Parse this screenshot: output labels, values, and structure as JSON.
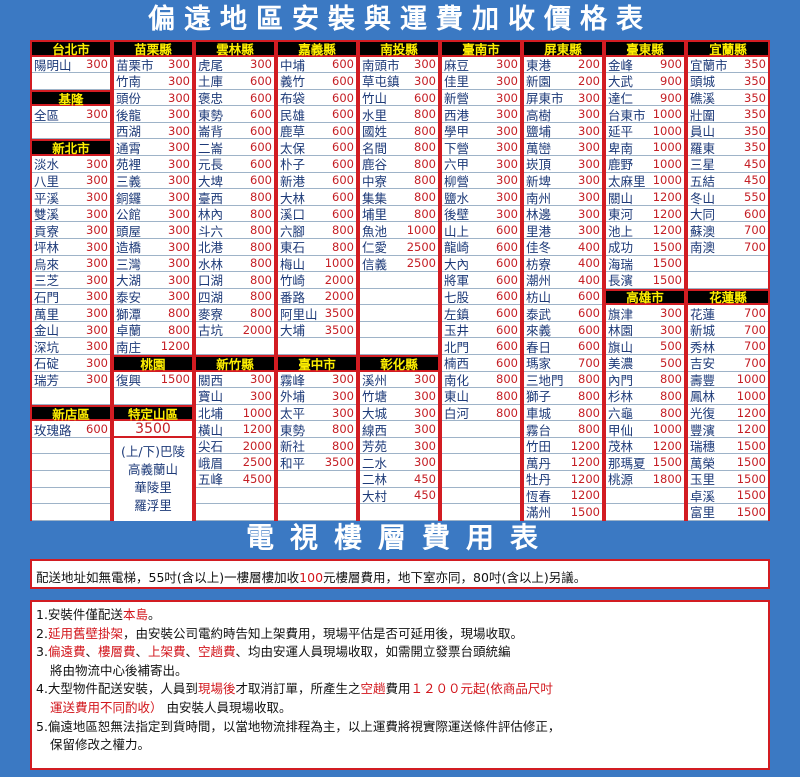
{
  "title": "偏遠地區安裝與運費加收價格表",
  "tv_title": "電視樓層費用表",
  "colors": {
    "background": "#3b79c3",
    "header_bg": "#000000",
    "header_text": "#ffef00",
    "border": "#d21c22",
    "name_text": "#1d3a78",
    "price_text": "#c41e24"
  },
  "columns": [
    {
      "cells": [
        {
          "header": "台北市"
        },
        {
          "name": "陽明山",
          "price": "300"
        },
        {},
        {
          "header": "基隆"
        },
        {
          "name": "全區",
          "price": "300"
        },
        {},
        {
          "header": "新北市"
        },
        {
          "name": "淡水",
          "price": "300"
        },
        {
          "name": "八里",
          "price": "300"
        },
        {
          "name": "平溪",
          "price": "300"
        },
        {
          "name": "雙溪",
          "price": "300"
        },
        {
          "name": "貢寮",
          "price": "300"
        },
        {
          "name": "坪林",
          "price": "300"
        },
        {
          "name": "烏來",
          "price": "300"
        },
        {
          "name": "三芝",
          "price": "300"
        },
        {
          "name": "石門",
          "price": "300"
        },
        {
          "name": "萬里",
          "price": "300"
        },
        {
          "name": "金山",
          "price": "300"
        },
        {
          "name": "深坑",
          "price": "300"
        },
        {
          "name": "石碇",
          "price": "300"
        },
        {
          "name": "瑞芳",
          "price": "300"
        },
        {},
        {
          "header": "新店區"
        },
        {
          "name": "玫瑰路",
          "price": "600"
        },
        {},
        {},
        {},
        {},
        {}
      ]
    },
    {
      "cells": [
        {
          "header": "苗栗縣"
        },
        {
          "name": "苗栗市",
          "price": "300"
        },
        {
          "name": "竹南",
          "price": "300"
        },
        {
          "name": "頭份",
          "price": "300"
        },
        {
          "name": "後龍",
          "price": "300"
        },
        {
          "name": "西湖",
          "price": "300"
        },
        {
          "name": "通霄",
          "price": "300"
        },
        {
          "name": "苑裡",
          "price": "300"
        },
        {
          "name": "三義",
          "price": "300"
        },
        {
          "name": "銅鑼",
          "price": "300"
        },
        {
          "name": "公館",
          "price": "300"
        },
        {
          "name": "頭屋",
          "price": "300"
        },
        {
          "name": "造橋",
          "price": "300"
        },
        {
          "name": "三灣",
          "price": "300"
        },
        {
          "name": "大湖",
          "price": "300"
        },
        {
          "name": "泰安",
          "price": "300"
        },
        {
          "name": "獅潭",
          "price": "800"
        },
        {
          "name": "卓蘭",
          "price": "800"
        },
        {
          "name": "南庄",
          "price": "1200"
        },
        {
          "header": "桃園"
        },
        {
          "name": "復興",
          "price": "1500"
        },
        {},
        {
          "header": "特定山區"
        },
        {
          "value": "3500"
        },
        {
          "lines": [
            "(上/下)巴陵",
            "高義蘭山",
            "華陵里",
            "羅浮里"
          ]
        }
      ]
    },
    {
      "cells": [
        {
          "header": "雲林縣"
        },
        {
          "name": "虎尾",
          "price": "300"
        },
        {
          "name": "土庫",
          "price": "600"
        },
        {
          "name": "褒忠",
          "price": "600"
        },
        {
          "name": "東勢",
          "price": "600"
        },
        {
          "name": "崙背",
          "price": "600"
        },
        {
          "name": "二崙",
          "price": "600"
        },
        {
          "name": "元長",
          "price": "600"
        },
        {
          "name": "大埤",
          "price": "600"
        },
        {
          "name": "臺西",
          "price": "800"
        },
        {
          "name": "林內",
          "price": "800"
        },
        {
          "name": "斗六",
          "price": "800"
        },
        {
          "name": "北港",
          "price": "800"
        },
        {
          "name": "水林",
          "price": "800"
        },
        {
          "name": "口湖",
          "price": "800"
        },
        {
          "name": "四湖",
          "price": "800"
        },
        {
          "name": "麥寮",
          "price": "800"
        },
        {
          "name": "古坑",
          "price": "2000"
        },
        {},
        {
          "header": "新竹縣"
        },
        {
          "name": "關西",
          "price": "300"
        },
        {
          "name": "寶山",
          "price": "300"
        },
        {
          "name": "北埔",
          "price": "1000"
        },
        {
          "name": "橫山",
          "price": "1200"
        },
        {
          "name": "尖石",
          "price": "2000"
        },
        {
          "name": "峨眉",
          "price": "2500"
        },
        {
          "name": "五峰",
          "price": "4500"
        },
        {},
        {}
      ]
    },
    {
      "cells": [
        {
          "header": "嘉義縣"
        },
        {
          "name": "中埔",
          "price": "600"
        },
        {
          "name": "義竹",
          "price": "600"
        },
        {
          "name": "布袋",
          "price": "600"
        },
        {
          "name": "民雄",
          "price": "600"
        },
        {
          "name": "鹿草",
          "price": "600"
        },
        {
          "name": "太保",
          "price": "600"
        },
        {
          "name": "朴子",
          "price": "600"
        },
        {
          "name": "新港",
          "price": "600"
        },
        {
          "name": "大林",
          "price": "600"
        },
        {
          "name": "溪口",
          "price": "600"
        },
        {
          "name": "六腳",
          "price": "800"
        },
        {
          "name": "東石",
          "price": "800"
        },
        {
          "name": "梅山",
          "price": "1000"
        },
        {
          "name": "竹崎",
          "price": "2000"
        },
        {
          "name": "番路",
          "price": "2000"
        },
        {
          "name": "阿里山",
          "price": "3500"
        },
        {
          "name": "大埔",
          "price": "3500"
        },
        {},
        {
          "header": "臺中市"
        },
        {
          "name": "霧峰",
          "price": "300"
        },
        {
          "name": "外埔",
          "price": "300"
        },
        {
          "name": "太平",
          "price": "300"
        },
        {
          "name": "東勢",
          "price": "800"
        },
        {
          "name": "新社",
          "price": "800"
        },
        {
          "name": "和平",
          "price": "3500"
        },
        {},
        {},
        {}
      ]
    },
    {
      "cells": [
        {
          "header": "南投縣"
        },
        {
          "name": "南頭市",
          "price": "300"
        },
        {
          "name": "草屯鎮",
          "price": "300"
        },
        {
          "name": "竹山",
          "price": "600"
        },
        {
          "name": "水里",
          "price": "800"
        },
        {
          "name": "國姓",
          "price": "800"
        },
        {
          "name": "名間",
          "price": "800"
        },
        {
          "name": "鹿谷",
          "price": "800"
        },
        {
          "name": "中寮",
          "price": "800"
        },
        {
          "name": "集集",
          "price": "800"
        },
        {
          "name": "埔里",
          "price": "800"
        },
        {
          "name": "魚池",
          "price": "1000"
        },
        {
          "name": "仁愛",
          "price": "2500"
        },
        {
          "name": "信義",
          "price": "2500"
        },
        {},
        {},
        {},
        {},
        {},
        {
          "header": "彰化縣"
        },
        {
          "name": "溪州",
          "price": "300"
        },
        {
          "name": "竹塘",
          "price": "300"
        },
        {
          "name": "大城",
          "price": "300"
        },
        {
          "name": "線西",
          "price": "300"
        },
        {
          "name": "芳苑",
          "price": "300"
        },
        {
          "name": "二水",
          "price": "300"
        },
        {
          "name": "二林",
          "price": "450"
        },
        {
          "name": "大村",
          "price": "450"
        },
        {}
      ]
    },
    {
      "cells": [
        {
          "header": "臺南市"
        },
        {
          "name": "麻豆",
          "price": "300"
        },
        {
          "name": "佳里",
          "price": "300"
        },
        {
          "name": "新營",
          "price": "300"
        },
        {
          "name": "西港",
          "price": "300"
        },
        {
          "name": "學甲",
          "price": "300"
        },
        {
          "name": "下營",
          "price": "300"
        },
        {
          "name": "六甲",
          "price": "300"
        },
        {
          "name": "柳營",
          "price": "300"
        },
        {
          "name": "鹽水",
          "price": "300"
        },
        {
          "name": "後壁",
          "price": "300"
        },
        {
          "name": "山上",
          "price": "600"
        },
        {
          "name": "龍崎",
          "price": "600"
        },
        {
          "name": "大內",
          "price": "600"
        },
        {
          "name": "將軍",
          "price": "600"
        },
        {
          "name": "七股",
          "price": "600"
        },
        {
          "name": "左鎮",
          "price": "600"
        },
        {
          "name": "玉井",
          "price": "600"
        },
        {
          "name": "北門",
          "price": "600"
        },
        {
          "name": "楠西",
          "price": "600"
        },
        {
          "name": "南化",
          "price": "800"
        },
        {
          "name": "東山",
          "price": "800"
        },
        {
          "name": "白河",
          "price": "800"
        },
        {},
        {},
        {},
        {},
        {},
        {}
      ]
    },
    {
      "cells": [
        {
          "header": "屏東縣"
        },
        {
          "name": "東港",
          "price": "200"
        },
        {
          "name": "新園",
          "price": "200"
        },
        {
          "name": "屏東市",
          "price": "300"
        },
        {
          "name": "高樹",
          "price": "300"
        },
        {
          "name": "鹽埔",
          "price": "300"
        },
        {
          "name": "萬巒",
          "price": "300"
        },
        {
          "name": "崁頂",
          "price": "300"
        },
        {
          "name": "新埤",
          "price": "300"
        },
        {
          "name": "南州",
          "price": "300"
        },
        {
          "name": "林邊",
          "price": "300"
        },
        {
          "name": "里港",
          "price": "300"
        },
        {
          "name": "佳冬",
          "price": "400"
        },
        {
          "name": "枋寮",
          "price": "400"
        },
        {
          "name": "潮州",
          "price": "400"
        },
        {
          "name": "枋山",
          "price": "600"
        },
        {
          "name": "泰武",
          "price": "600"
        },
        {
          "name": "來義",
          "price": "600"
        },
        {
          "name": "春日",
          "price": "600"
        },
        {
          "name": "瑪家",
          "price": "700"
        },
        {
          "name": "三地門",
          "price": "800"
        },
        {
          "name": "獅子",
          "price": "800"
        },
        {
          "name": "車城",
          "price": "800"
        },
        {
          "name": "霧台",
          "price": "800"
        },
        {
          "name": "竹田",
          "price": "1200"
        },
        {
          "name": "萬丹",
          "price": "1200"
        },
        {
          "name": "牡丹",
          "price": "1200"
        },
        {
          "name": "恆春",
          "price": "1200"
        },
        {
          "name": "滿州",
          "price": "1500"
        }
      ]
    },
    {
      "cells": [
        {
          "header": "臺東縣"
        },
        {
          "name": "金峰",
          "price": "900"
        },
        {
          "name": "大武",
          "price": "900"
        },
        {
          "name": "達仁",
          "price": "900"
        },
        {
          "name": "台東市",
          "price": "1000"
        },
        {
          "name": "延平",
          "price": "1000"
        },
        {
          "name": "卑南",
          "price": "1000"
        },
        {
          "name": "鹿野",
          "price": "1000"
        },
        {
          "name": "太麻里",
          "price": "1000"
        },
        {
          "name": "關山",
          "price": "1200"
        },
        {
          "name": "東河",
          "price": "1200"
        },
        {
          "name": "池上",
          "price": "1200"
        },
        {
          "name": "成功",
          "price": "1500"
        },
        {
          "name": "海瑞",
          "price": "1500"
        },
        {
          "name": "長濱",
          "price": "1500"
        },
        {
          "header": "高雄市"
        },
        {
          "name": "旗津",
          "price": "300"
        },
        {
          "name": "林園",
          "price": "300"
        },
        {
          "name": "旗山",
          "price": "500"
        },
        {
          "name": "美濃",
          "price": "500"
        },
        {
          "name": "內門",
          "price": "800"
        },
        {
          "name": "杉林",
          "price": "800"
        },
        {
          "name": "六龜",
          "price": "800"
        },
        {
          "name": "甲仙",
          "price": "1000"
        },
        {
          "name": "茂林",
          "price": "1200"
        },
        {
          "name": "那瑪夏",
          "price": "1500"
        },
        {
          "name": "桃源",
          "price": "1800"
        },
        {},
        {}
      ]
    },
    {
      "cells": [
        {
          "header": "宜蘭縣"
        },
        {
          "name": "宜蘭市",
          "price": "350"
        },
        {
          "name": "頭城",
          "price": "350"
        },
        {
          "name": "礁溪",
          "price": "350"
        },
        {
          "name": "壯圍",
          "price": "350"
        },
        {
          "name": "員山",
          "price": "350"
        },
        {
          "name": "羅東",
          "price": "350"
        },
        {
          "name": "三星",
          "price": "450"
        },
        {
          "name": "五結",
          "price": "450"
        },
        {
          "name": "冬山",
          "price": "550"
        },
        {
          "name": "大同",
          "price": "600"
        },
        {
          "name": "蘇澳",
          "price": "700"
        },
        {
          "name": "南澳",
          "price": "700"
        },
        {},
        {},
        {
          "header": "花蓮縣"
        },
        {
          "name": "花蓮",
          "price": "700"
        },
        {
          "name": "新城",
          "price": "700"
        },
        {
          "name": "秀林",
          "price": "700"
        },
        {
          "name": "吉安",
          "price": "700"
        },
        {
          "name": "壽豐",
          "price": "1000"
        },
        {
          "name": "鳳林",
          "price": "1000"
        },
        {
          "name": "光復",
          "price": "1200"
        },
        {
          "name": "豐濱",
          "price": "1200"
        },
        {
          "name": "瑞穗",
          "price": "1500"
        },
        {
          "name": "萬榮",
          "price": "1500"
        },
        {
          "name": "玉里",
          "price": "1500"
        },
        {
          "name": "卓溪",
          "price": "1500"
        },
        {
          "name": "富里",
          "price": "1500"
        }
      ]
    }
  ],
  "tv_note": [
    {
      "text": "配送地址如無電梯，55吋(含以上)一樓層樓加收"
    },
    {
      "text": "100",
      "red": true
    },
    {
      "text": "元樓層費用，地下室亦同，80吋(含以上)另議。"
    }
  ],
  "notes": [
    [
      [
        {
          "text": "1.安裝件僅配送"
        },
        {
          "text": "本島",
          "red": true
        },
        {
          "text": "。"
        }
      ]
    ],
    [
      [
        {
          "text": "2."
        },
        {
          "text": "延用舊壁掛架",
          "red": true
        },
        {
          "text": "，由安裝公司電約時告知上架費用，現場平估是否可延用後，現場收取。"
        }
      ]
    ],
    [
      [
        {
          "text": "3."
        },
        {
          "text": "偏遠費",
          "red": true
        },
        {
          "text": "、"
        },
        {
          "text": "樓層費",
          "red": true
        },
        {
          "text": "、"
        },
        {
          "text": "上架費",
          "red": true
        },
        {
          "text": "、"
        },
        {
          "text": "空趟費",
          "red": true
        },
        {
          "text": "、均由安運人員現場收取，如需開立發票台頭統編"
        }
      ],
      [
        {
          "text": "將由物流中心後補寄出。"
        }
      ]
    ],
    [
      [
        {
          "text": "4.大型物件配送安裝，人員到"
        },
        {
          "text": "現場後",
          "red": true
        },
        {
          "text": "才取消訂單，所產生之"
        },
        {
          "text": "空趟",
          "red": true
        },
        {
          "text": "費用"
        },
        {
          "text": "１２００元起(依商品尺吋",
          "red": true
        }
      ],
      [
        {
          "text": "運送費用不同酌收）",
          "red": true
        },
        {
          "text": " 由安裝人員現場收取。"
        }
      ]
    ],
    [
      [
        {
          "text": "5.偏遠地區恕無法指定到貨時間，以當地物流排程為主，以上運費將視實際運送條件評估修正，"
        }
      ],
      [
        {
          "text": "保留修改之權力。"
        }
      ]
    ]
  ]
}
